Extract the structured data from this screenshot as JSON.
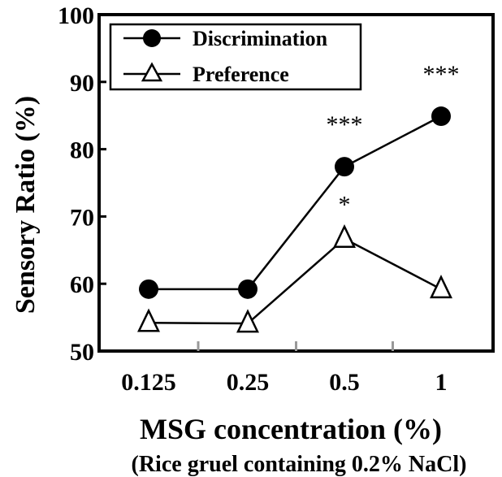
{
  "chart_data": {
    "type": "line",
    "categories": [
      "0.125",
      "0.25",
      "0.5",
      "1"
    ],
    "series": [
      {
        "name": "Discrimination",
        "marker": "filled-circle",
        "values": [
          59.2,
          59.2,
          77.4,
          84.9
        ]
      },
      {
        "name": "Preference",
        "marker": "open-triangle",
        "values": [
          54.2,
          54.1,
          66.7,
          59.2
        ]
      }
    ],
    "annotations": [
      {
        "category": "0.5",
        "series": "Discrimination",
        "text": "***"
      },
      {
        "category": "1",
        "series": "Discrimination",
        "text": "***"
      },
      {
        "category": "0.5",
        "series": "Preference",
        "text": "*"
      }
    ],
    "title": "",
    "xlabel": "MSG concentration  (%)",
    "xlabel_sub": "(Rice gruel containing 0.2% NaCl)",
    "ylabel": "Sensory Ratio  (%)",
    "ylim": [
      50,
      100
    ],
    "yticks": [
      "50",
      "60",
      "70",
      "80",
      "90",
      "100"
    ],
    "grid": false,
    "legend_position": "top-left",
    "colors": {
      "line": "#000000",
      "background": "#ffffff"
    }
  }
}
